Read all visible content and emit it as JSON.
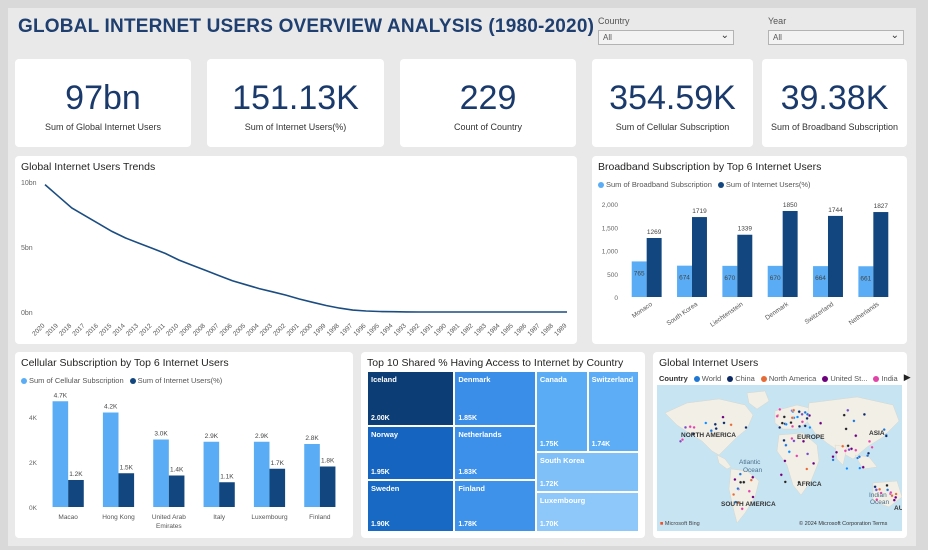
{
  "header": {
    "title": "GLOBAL INTERNET USERS OVERVIEW ANALYSIS (1980-2020)"
  },
  "slicers": [
    {
      "label": "Country",
      "value": "All"
    },
    {
      "label": "Year",
      "value": "All"
    }
  ],
  "kpis": [
    {
      "value": "97bn",
      "caption": "Sum of Global Internet Users"
    },
    {
      "value": "151.13K",
      "caption": "Sum of Internet Users(%)"
    },
    {
      "value": "229",
      "caption": "Count of Country"
    },
    {
      "value": "354.59K",
      "caption": "Sum of Cellular Subscription"
    },
    {
      "value": "39.38K",
      "caption": "Sum of Broadband Subscription"
    }
  ],
  "colors": {
    "light": "#5aadf5",
    "dark": "#12467e",
    "line": "#1b4d82",
    "title": "#1e3f6f"
  },
  "chart_data": [
    {
      "type": "line",
      "title": "Global Internet Users Trends",
      "x": [
        "2020",
        "2019",
        "2018",
        "2017",
        "2016",
        "2015",
        "2014",
        "2013",
        "2012",
        "2011",
        "2010",
        "2009",
        "2008",
        "2007",
        "2006",
        "2005",
        "2004",
        "2003",
        "2002",
        "2001",
        "2000",
        "1999",
        "1998",
        "1997",
        "1996",
        "1995",
        "1994",
        "1993",
        "1992",
        "1991",
        "1990",
        "1981",
        "1982",
        "1983",
        "1984",
        "1985",
        "1986",
        "1987",
        "1988",
        "1989"
      ],
      "values": [
        9.8,
        8.9,
        8.0,
        7.4,
        6.8,
        6.2,
        5.7,
        5.3,
        4.9,
        4.5,
        4.0,
        3.6,
        3.2,
        2.8,
        2.4,
        2.1,
        1.8,
        1.55,
        1.3,
        1.0,
        0.75,
        0.5,
        0.3,
        0.15,
        0.08,
        0.04,
        0.02,
        0.01,
        0,
        0,
        0,
        0,
        0,
        0,
        0,
        0,
        0,
        0,
        0,
        0
      ],
      "yticks": [
        "10bn",
        "5bn",
        "0bn"
      ],
      "ylim": [
        0,
        10
      ]
    },
    {
      "type": "bar",
      "title": "Broadband Subscription by Top 6 Internet Users",
      "categories": [
        "Monaco",
        "South Korea",
        "Liechtenstein",
        "Denmark",
        "Switzerland",
        "Netherlands"
      ],
      "series": [
        {
          "name": "Sum of Broadband Subscription",
          "values": [
            765,
            674,
            670,
            670,
            664,
            661
          ]
        },
        {
          "name": "Sum of Internet Users(%)",
          "values": [
            1269,
            1719,
            1339,
            1850,
            1744,
            1827
          ]
        }
      ],
      "yticks": [
        "2,000",
        "1,500",
        "1,000",
        "500",
        "0"
      ],
      "ylim": [
        0,
        2000
      ]
    },
    {
      "type": "bar",
      "title": "Cellular Subscription by Top 6 Internet Users",
      "categories": [
        "Macao",
        "Hong Kong",
        "United Arab Emirates",
        "Italy",
        "Luxembourg",
        "Finland"
      ],
      "series": [
        {
          "name": "Sum of Cellular Subscription",
          "values": [
            4.7,
            4.2,
            3.0,
            2.9,
            2.9,
            2.8
          ],
          "labels": [
            "4.7K",
            "4.2K",
            "3.0K",
            "2.9K",
            "2.9K",
            "2.8K"
          ]
        },
        {
          "name": "Sum of Internet Users(%)",
          "values": [
            1.2,
            1.5,
            1.4,
            1.1,
            1.7,
            1.8
          ],
          "labels": [
            "1.2K",
            "1.5K",
            "1.4K",
            "1.1K",
            "1.7K",
            "1.8K"
          ]
        }
      ],
      "yticks": [
        "4K",
        "2K",
        "0K"
      ],
      "ylim": [
        0,
        5.2
      ]
    },
    {
      "type": "treemap",
      "title": "Top 10 Shared % Having Access to Internet by Country",
      "items": [
        {
          "name": "Iceland",
          "label": "2.00K",
          "value": 2.0
        },
        {
          "name": "Norway",
          "label": "1.95K",
          "value": 1.95
        },
        {
          "name": "Sweden",
          "label": "1.90K",
          "value": 1.9
        },
        {
          "name": "Denmark",
          "label": "1.85K",
          "value": 1.85
        },
        {
          "name": "Netherlands",
          "label": "1.83K",
          "value": 1.83
        },
        {
          "name": "Finland",
          "label": "1.78K",
          "value": 1.78
        },
        {
          "name": "Canada",
          "label": "1.75K",
          "value": 1.75
        },
        {
          "name": "Switzerland",
          "label": "1.74K",
          "value": 1.74
        },
        {
          "name": "South Korea",
          "label": "1.72K",
          "value": 1.72
        },
        {
          "name": "Luxembourg",
          "label": "1.70K",
          "value": 1.7
        }
      ]
    }
  ],
  "map_panel": {
    "title": "Global Internet Users",
    "legend_title": "Country",
    "legend": [
      {
        "name": "World",
        "color": "#1f77d4"
      },
      {
        "name": "China",
        "color": "#0d2a66"
      },
      {
        "name": "North America",
        "color": "#e66c37"
      },
      {
        "name": "United St...",
        "color": "#6b007b"
      },
      {
        "name": "India",
        "color": "#e044a7"
      }
    ],
    "labels": {
      "north_america": "NORTH AMERICA",
      "europe": "EUROPE",
      "asia": "ASIA",
      "atlantic": "Atlantic",
      "ocean": "Ocean",
      "africa": "AFRICA",
      "south_america": "SOUTH AMERICA",
      "indian": "Indian",
      "indian_ocean": "Ocean",
      "au": "AU",
      "brand": "Microsoft Bing",
      "copyright": "© 2024 Microsoft Corporation",
      "terms": "Terms"
    }
  }
}
